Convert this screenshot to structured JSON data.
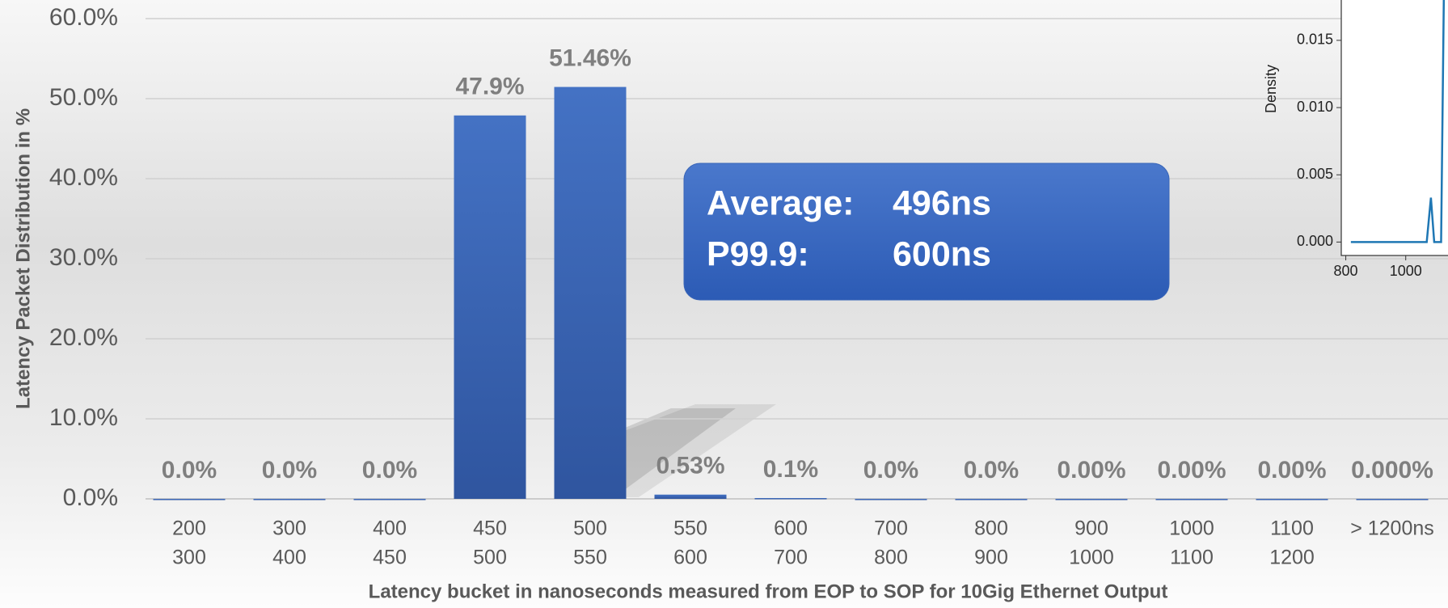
{
  "chart_data": [
    {
      "type": "bar",
      "y_label": "Latency Packet Distribution in %",
      "x_label": "Latency bucket in nanoseconds measured from EOP to SOP for 10Gig Ethernet Output",
      "categories": [
        [
          "200",
          "300"
        ],
        [
          "300",
          "400"
        ],
        [
          "400",
          "450"
        ],
        [
          "450",
          "500"
        ],
        [
          "500",
          "550"
        ],
        [
          "550",
          "600"
        ],
        [
          "600",
          "700"
        ],
        [
          "700",
          "800"
        ],
        [
          "800",
          "900"
        ],
        [
          "900",
          "1000"
        ],
        [
          "1000",
          "1100"
        ],
        [
          "1100",
          "1200"
        ],
        [
          "> 1200ns"
        ]
      ],
      "values": [
        0,
        0,
        0,
        47.9,
        51.46,
        0.53,
        0.1,
        0,
        0,
        0,
        0,
        0,
        0
      ],
      "value_labels": [
        "0.0%",
        "0.0%",
        "0.0%",
        "47.9%",
        "51.46%",
        "0.53%",
        "0.1%",
        "0.0%",
        "0.0%",
        "0.00%",
        "0.00%",
        "0.00%",
        "0.000%"
      ],
      "color": "#4472c4",
      "ylim": [
        0,
        60
      ],
      "yticks": [
        {
          "value": 0,
          "label": "0.0%"
        },
        {
          "value": 10,
          "label": "10.0%"
        },
        {
          "value": 20,
          "label": "20.0%"
        },
        {
          "value": 30,
          "label": "30.0%"
        },
        {
          "value": 40,
          "label": "40.0%"
        },
        {
          "value": 50,
          "label": "50.0%"
        },
        {
          "value": 60,
          "label": "60.0%"
        }
      ],
      "grid": true,
      "annotation": {
        "rows": [
          [
            "Average:",
            "496ns"
          ],
          [
            "P99.9:",
            "600ns"
          ]
        ]
      }
    },
    {
      "type": "line",
      "y_label": "Density",
      "x": [
        817,
        1070,
        1084,
        1095,
        1118,
        1127
      ],
      "values": [
        0,
        0,
        0.0033,
        0,
        0,
        0.018
      ],
      "color": "#1f77b4",
      "xlim": [
        785,
        1141
      ],
      "ylim": [
        -0.001,
        0.018
      ],
      "xticks": [
        800,
        1000
      ],
      "yticks": [
        {
          "value": 0,
          "label": "0.000"
        },
        0.005,
        {
          "value": 0.01,
          "label": "0.010"
        },
        0.015
      ]
    }
  ]
}
